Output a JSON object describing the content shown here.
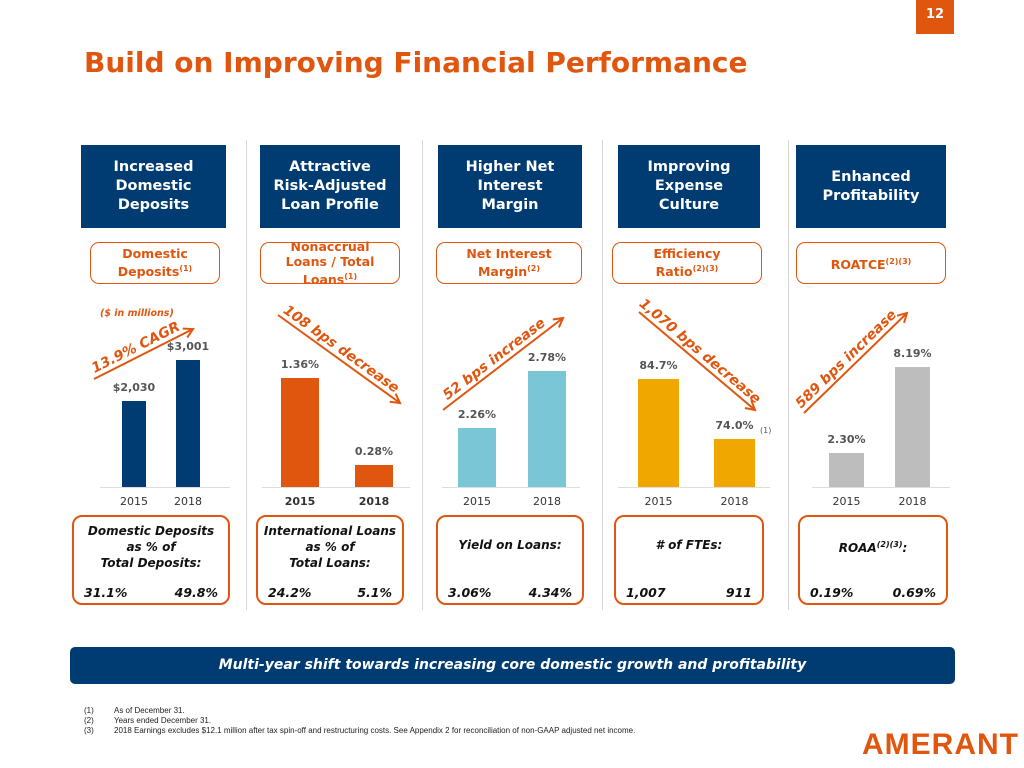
{
  "page_number": "12",
  "title": "Build on Improving Financial Performance",
  "columns": [
    {
      "header": "Increased\nDomestic\nDeposits",
      "metric": "Domestic\nDeposits",
      "metric_sup": "(1)",
      "note": "($ in millions)",
      "trend": "13.9% CAGR",
      "bottom": {
        "label": "Domestic Deposits\nas % of\nTotal Deposits:",
        "v2015": "31.1%",
        "v2018": "49.8%"
      }
    },
    {
      "header": "Attractive\nRisk-Adjusted\nLoan Profile",
      "metric": "Nonaccrual\nLoans / Total\nLoans",
      "metric_sup": "(1)",
      "trend": "108 bps decrease",
      "bottom": {
        "label": "International Loans\nas % of\nTotal Loans:",
        "v2015": "24.2%",
        "v2018": "5.1%"
      }
    },
    {
      "header": "Higher Net\nInterest\nMargin",
      "metric": "Net Interest\nMargin",
      "metric_sup": "(2)",
      "trend": "52 bps increase",
      "bottom": {
        "label": "Yield on Loans:",
        "v2015": "3.06%",
        "v2018": "4.34%"
      }
    },
    {
      "header": "Improving\nExpense\nCulture",
      "metric": "Efficiency\nRatio",
      "metric_sup": "(2)(3)",
      "trend": "1,070 bps decrease",
      "value_note": "(1)",
      "bottom": {
        "label": "# of FTEs:",
        "v2015": "1,007",
        "v2018": "911"
      }
    },
    {
      "header": "Enhanced\nProfitability",
      "metric": "ROATCE",
      "metric_sup": "(2)(3)",
      "trend": "589 bps increase",
      "bottom": {
        "label": "ROAA",
        "label_sup": "(2)(3)",
        "label_suffix": ":",
        "v2015": "0.19%",
        "v2018": "0.69%"
      }
    }
  ],
  "chart_data": [
    {
      "type": "bar",
      "categories": [
        "2015",
        "2018"
      ],
      "values": [
        2030,
        3001
      ],
      "labels": [
        "$2,030",
        "$3,001"
      ],
      "color": "#003C71",
      "annotation": "13.9% CAGR"
    },
    {
      "type": "bar",
      "categories": [
        "2015",
        "2018"
      ],
      "values": [
        1.36,
        0.28
      ],
      "labels": [
        "1.36%",
        "0.28%"
      ],
      "color": "#E0560F",
      "annotation": "108 bps decrease"
    },
    {
      "type": "bar",
      "categories": [
        "2015",
        "2018"
      ],
      "values": [
        2.26,
        2.78
      ],
      "labels": [
        "2.26%",
        "2.78%"
      ],
      "color": "#7AC5D6",
      "annotation": "52 bps increase"
    },
    {
      "type": "bar",
      "categories": [
        "2015",
        "2018"
      ],
      "values": [
        84.7,
        74.0
      ],
      "labels": [
        "84.7%",
        "74.0%"
      ],
      "color": "#F0A800",
      "annotation": "1,070 bps decrease"
    },
    {
      "type": "bar",
      "categories": [
        "2015",
        "2018"
      ],
      "values": [
        2.3,
        8.19
      ],
      "labels": [
        "2.30%",
        "8.19%"
      ],
      "color": "#BDBDBD",
      "annotation": "589 bps increase"
    }
  ],
  "banner": "Multi-year shift towards increasing core domestic growth and profitability",
  "footnotes": [
    {
      "n": "(1)",
      "text": "As of December 31."
    },
    {
      "n": "(2)",
      "text": "Years ended December 31."
    },
    {
      "n": "(3)",
      "text": "2018 Earnings excludes $12.1 million after tax spin-off and restructuring costs. See Appendix 2 for reconciliation of non-GAAP adjusted net income."
    }
  ],
  "logo": "AMERANT"
}
